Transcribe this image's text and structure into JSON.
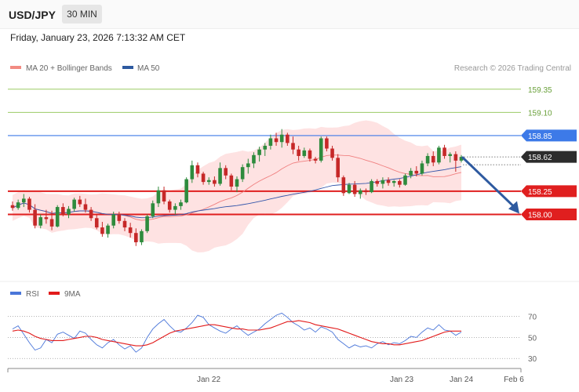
{
  "header": {
    "symbol": "USD/JPY",
    "timeframe": "30 MIN",
    "datetime": "Friday, January 23, 2026 7:13:32 AM CET"
  },
  "legend": {
    "ma20_label": "MA 20 + Bollinger Bands",
    "ma50_label": "MA 50",
    "credit": "Research © 2026 Trading Central",
    "ma20_color": "#f28b82",
    "ma50_color": "#2e5aa0"
  },
  "rsi_legend": {
    "rsi_label": "RSI",
    "ma_label": "9MA",
    "rsi_color": "#4a76d9",
    "ma_color": "#e21b1b"
  },
  "chart_data": [
    {
      "type": "candlestick",
      "title": "",
      "ylim": [
        157.32,
        159.5
      ],
      "colors": {
        "up": "#2e8b3d",
        "down": "#c62828",
        "band": "#fdd5d5",
        "ma20": "#f08080",
        "ma50": "#3355aa"
      },
      "levels": [
        {
          "value": 159.35,
          "label": "159.35",
          "style": "green-thin"
        },
        {
          "value": 159.1,
          "label": "159.10",
          "style": "green-thin"
        },
        {
          "value": 158.85,
          "label": "158.85",
          "style": "blue"
        },
        {
          "value": 158.62,
          "label": "158.62",
          "style": "current"
        },
        {
          "value": 158.25,
          "label": "158.25",
          "style": "red"
        },
        {
          "value": 158.0,
          "label": "158.00",
          "style": "red"
        }
      ],
      "x_ticks": [
        "Jan 22",
        "Jan 23",
        "Jan 24",
        "Feb 6"
      ],
      "projection": {
        "from": 158.62,
        "to": 158.0,
        "color": "#2e5aa0"
      },
      "candles": [
        [
          158.1,
          158.14,
          158.04,
          158.07
        ],
        [
          158.07,
          158.16,
          158.05,
          158.13
        ],
        [
          158.13,
          158.22,
          158.08,
          158.17
        ],
        [
          158.17,
          158.19,
          158.02,
          158.05
        ],
        [
          158.05,
          158.11,
          157.85,
          157.88
        ],
        [
          157.88,
          158.0,
          157.85,
          157.97
        ],
        [
          157.97,
          158.05,
          157.9,
          157.95
        ],
        [
          157.95,
          158.04,
          157.83,
          157.87
        ],
        [
          157.87,
          158.1,
          157.86,
          158.08
        ],
        [
          158.08,
          158.12,
          157.98,
          158.0
        ],
        [
          158.0,
          158.09,
          157.96,
          158.06
        ],
        [
          158.06,
          158.18,
          158.03,
          158.16
        ],
        [
          158.16,
          158.2,
          158.08,
          158.11
        ],
        [
          158.11,
          158.17,
          158.02,
          158.05
        ],
        [
          158.05,
          158.08,
          157.93,
          157.96
        ],
        [
          157.96,
          158.0,
          157.84,
          157.86
        ],
        [
          157.86,
          157.92,
          157.76,
          157.79
        ],
        [
          157.79,
          157.9,
          157.75,
          157.88
        ],
        [
          157.88,
          158.03,
          157.85,
          158.0
        ],
        [
          158.0,
          158.03,
          157.9,
          157.93
        ],
        [
          157.93,
          157.96,
          157.82,
          157.86
        ],
        [
          157.86,
          157.91,
          157.75,
          157.8
        ],
        [
          157.8,
          157.85,
          157.66,
          157.7
        ],
        [
          157.7,
          157.84,
          157.67,
          157.82
        ],
        [
          157.82,
          158.0,
          157.8,
          157.98
        ],
        [
          157.98,
          158.15,
          157.96,
          158.12
        ],
        [
          158.12,
          158.3,
          158.08,
          158.26
        ],
        [
          158.26,
          158.3,
          158.11,
          158.14
        ],
        [
          158.14,
          158.16,
          158.02,
          158.05
        ],
        [
          158.05,
          158.12,
          158.0,
          158.09
        ],
        [
          158.09,
          158.16,
          158.05,
          158.13
        ],
        [
          158.13,
          158.4,
          158.12,
          158.38
        ],
        [
          158.38,
          158.58,
          158.34,
          158.53
        ],
        [
          158.53,
          158.56,
          158.4,
          158.44
        ],
        [
          158.44,
          158.46,
          158.32,
          158.35
        ],
        [
          158.35,
          158.4,
          158.32,
          158.37
        ],
        [
          158.37,
          158.41,
          158.3,
          158.33
        ],
        [
          158.33,
          158.56,
          158.31,
          158.5
        ],
        [
          158.5,
          158.53,
          158.38,
          158.42
        ],
        [
          158.42,
          158.44,
          158.26,
          158.3
        ],
        [
          158.3,
          158.41,
          158.24,
          158.38
        ],
        [
          158.38,
          158.54,
          158.35,
          158.51
        ],
        [
          158.51,
          158.6,
          158.44,
          158.55
        ],
        [
          158.55,
          158.67,
          158.5,
          158.64
        ],
        [
          158.64,
          158.73,
          158.57,
          158.7
        ],
        [
          158.7,
          158.77,
          158.63,
          158.74
        ],
        [
          158.74,
          158.86,
          158.7,
          158.82
        ],
        [
          158.82,
          158.88,
          158.74,
          158.78
        ],
        [
          158.78,
          158.92,
          158.72,
          158.86
        ],
        [
          158.86,
          158.88,
          158.74,
          158.77
        ],
        [
          158.77,
          158.84,
          158.65,
          158.7
        ],
        [
          158.7,
          158.74,
          158.58,
          158.63
        ],
        [
          158.63,
          158.72,
          158.61,
          158.69
        ],
        [
          158.69,
          158.71,
          158.57,
          158.6
        ],
        [
          158.6,
          158.62,
          158.55,
          158.58
        ],
        [
          158.58,
          158.84,
          158.56,
          158.82
        ],
        [
          158.82,
          158.84,
          158.68,
          158.71
        ],
        [
          158.71,
          158.74,
          158.58,
          158.61
        ],
        [
          158.61,
          158.65,
          158.35,
          158.4
        ],
        [
          158.4,
          158.42,
          158.2,
          158.23
        ],
        [
          158.23,
          158.34,
          158.22,
          158.32
        ],
        [
          158.32,
          158.36,
          158.19,
          158.22
        ],
        [
          158.22,
          158.28,
          158.17,
          158.26
        ],
        [
          158.26,
          158.28,
          158.21,
          158.24
        ],
        [
          158.24,
          158.38,
          158.23,
          158.36
        ],
        [
          158.36,
          158.38,
          158.3,
          158.33
        ],
        [
          158.33,
          158.4,
          158.28,
          158.37
        ],
        [
          158.37,
          158.4,
          158.31,
          158.34
        ],
        [
          158.34,
          158.37,
          158.3,
          158.36
        ],
        [
          158.36,
          158.38,
          158.29,
          158.32
        ],
        [
          158.32,
          158.44,
          158.31,
          158.42
        ],
        [
          158.42,
          158.5,
          158.39,
          158.47
        ],
        [
          158.47,
          158.52,
          158.41,
          158.44
        ],
        [
          158.44,
          158.58,
          158.42,
          158.55
        ],
        [
          158.55,
          158.66,
          158.52,
          158.63
        ],
        [
          158.63,
          158.68,
          158.52,
          158.56
        ],
        [
          158.56,
          158.74,
          158.54,
          158.72
        ],
        [
          158.72,
          158.75,
          158.6,
          158.63
        ],
        [
          158.63,
          158.67,
          158.56,
          158.65
        ],
        [
          158.65,
          158.68,
          158.46,
          158.58
        ],
        [
          158.58,
          158.64,
          158.56,
          158.62
        ]
      ]
    },
    {
      "type": "line",
      "title": "",
      "ylim": [
        22,
        83
      ],
      "y_ticks": [
        30,
        50,
        70
      ],
      "series": [
        {
          "name": "RSI",
          "values": [
            58,
            61,
            53,
            45,
            38,
            40,
            48,
            45,
            53,
            55,
            52,
            49,
            56,
            54,
            48,
            43,
            40,
            45,
            48,
            43,
            39,
            42,
            36,
            40,
            50,
            58,
            63,
            67,
            61,
            56,
            55,
            59,
            64,
            71,
            69,
            62,
            59,
            56,
            54,
            58,
            61,
            56,
            52,
            55,
            58,
            63,
            67,
            71,
            73,
            69,
            64,
            61,
            57,
            59,
            55,
            60,
            58,
            55,
            48,
            44,
            40,
            43,
            41,
            42,
            40,
            44,
            46,
            43,
            45,
            44,
            47,
            51,
            50,
            55,
            59,
            57,
            62,
            57,
            56,
            52,
            55
          ]
        },
        {
          "name": "9MA",
          "values": [
            56,
            57,
            56,
            54,
            51,
            49,
            48,
            47,
            47,
            47,
            48,
            49,
            50,
            51,
            51,
            50,
            48,
            47,
            46,
            45,
            44,
            43,
            42,
            42,
            43,
            45,
            48,
            51,
            54,
            56,
            57,
            58,
            59,
            60,
            61,
            62,
            62,
            61,
            60,
            59,
            58,
            58,
            57,
            57,
            57,
            58,
            59,
            61,
            63,
            65,
            65,
            66,
            65,
            64,
            62,
            61,
            60,
            59,
            58,
            56,
            54,
            52,
            50,
            48,
            46,
            45,
            44,
            44,
            43,
            43,
            44,
            45,
            46,
            47,
            49,
            51,
            53,
            55,
            56,
            56,
            56
          ]
        }
      ]
    }
  ]
}
